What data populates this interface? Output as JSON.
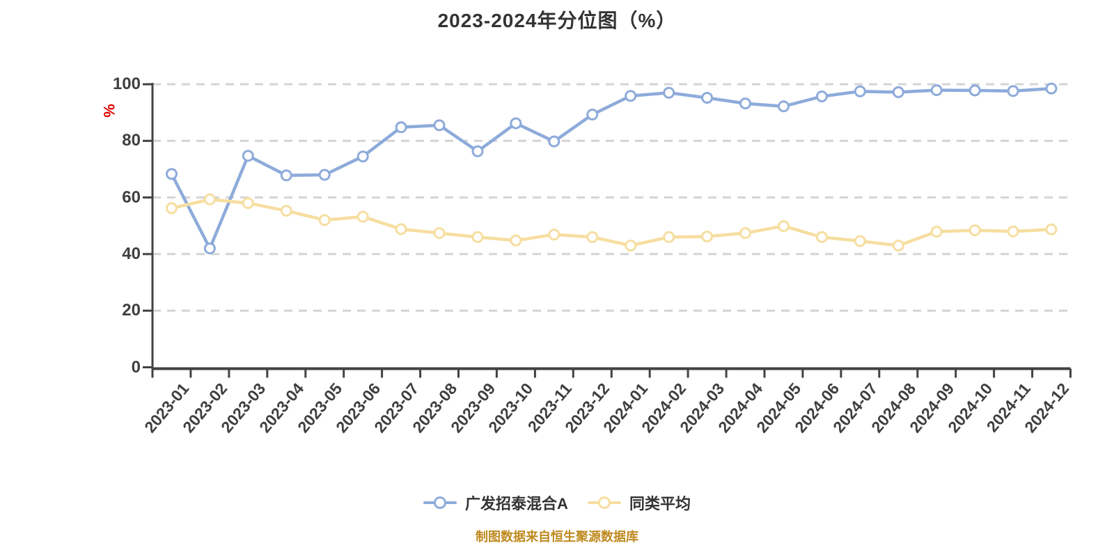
{
  "title": "2023-2024年分位图（%）",
  "y_axis": {
    "unit": "%",
    "unit_color": "#e00000"
  },
  "footer": "制图数据来自恒生聚源数据库",
  "legend": [
    {
      "label": "广发招泰混合A",
      "color": "#8dabda"
    },
    {
      "label": "同类平均",
      "color": "#f6dea0"
    }
  ],
  "colors": {
    "background": "#ffffff",
    "grid_line": "#d4d4d4",
    "axis_line": "#424242",
    "tick_label": "#3f3f3f",
    "title_text": "#333333",
    "footer_text": "#bf8a1f",
    "unit_label": "#e00000",
    "series_fund": "#8dabda",
    "series_avg": "#f6dea0",
    "marker_fill": "#ffffff"
  },
  "chart_data": {
    "type": "line",
    "title": "2023-2024年分位图（%）",
    "xlabel": "",
    "ylabel": "%",
    "ylim": [
      0,
      100
    ],
    "y_ticks": [
      0,
      20,
      40,
      60,
      80,
      100
    ],
    "grid": "horizontal-dashed",
    "legend_position": "bottom",
    "categories": [
      "2023-01",
      "2023-02",
      "2023-03",
      "2023-04",
      "2023-05",
      "2023-06",
      "2023-07",
      "2023-08",
      "2023-09",
      "2023-10",
      "2023-11",
      "2023-12",
      "2024-01",
      "2024-02",
      "2024-03",
      "2024-04",
      "2024-05",
      "2024-06",
      "2024-07",
      "2024-08",
      "2024-09",
      "2024-10",
      "2024-11",
      "2024-12"
    ],
    "series": [
      {
        "name": "广发招泰混合A",
        "color": "#8dabda",
        "marker": "circle-white-fill",
        "values": [
          68.3,
          42.0,
          74.7,
          67.8,
          68.0,
          74.5,
          84.8,
          85.5,
          76.3,
          86.2,
          79.8,
          89.3,
          95.9,
          97.0,
          95.2,
          93.2,
          92.2,
          95.7,
          97.5,
          97.2,
          97.9,
          97.8,
          97.6,
          98.5
        ]
      },
      {
        "name": "同类平均",
        "color": "#f6dea0",
        "marker": "circle-white-fill",
        "values": [
          56.2,
          59.3,
          58.0,
          55.3,
          52.0,
          53.2,
          48.8,
          47.4,
          46.0,
          44.8,
          46.9,
          46.0,
          43.0,
          46.0,
          46.2,
          47.4,
          49.9,
          46.0,
          44.6,
          43.0,
          47.9,
          48.4,
          48.0,
          48.7
        ]
      }
    ]
  }
}
